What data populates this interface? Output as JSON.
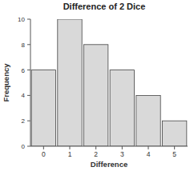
{
  "chart_data": {
    "type": "bar",
    "title": "Difference of 2 Dice",
    "x_label": "Difference",
    "y_label": "Frequency",
    "categories": [
      "0",
      "1",
      "2",
      "3",
      "4",
      "5"
    ],
    "values": [
      6,
      10,
      8,
      6,
      4,
      2
    ],
    "color": "#d9d9d9",
    "ylim": [
      0,
      10
    ],
    "yticks": [
      0,
      2,
      4,
      6,
      8,
      10
    ],
    "grid": false
  }
}
